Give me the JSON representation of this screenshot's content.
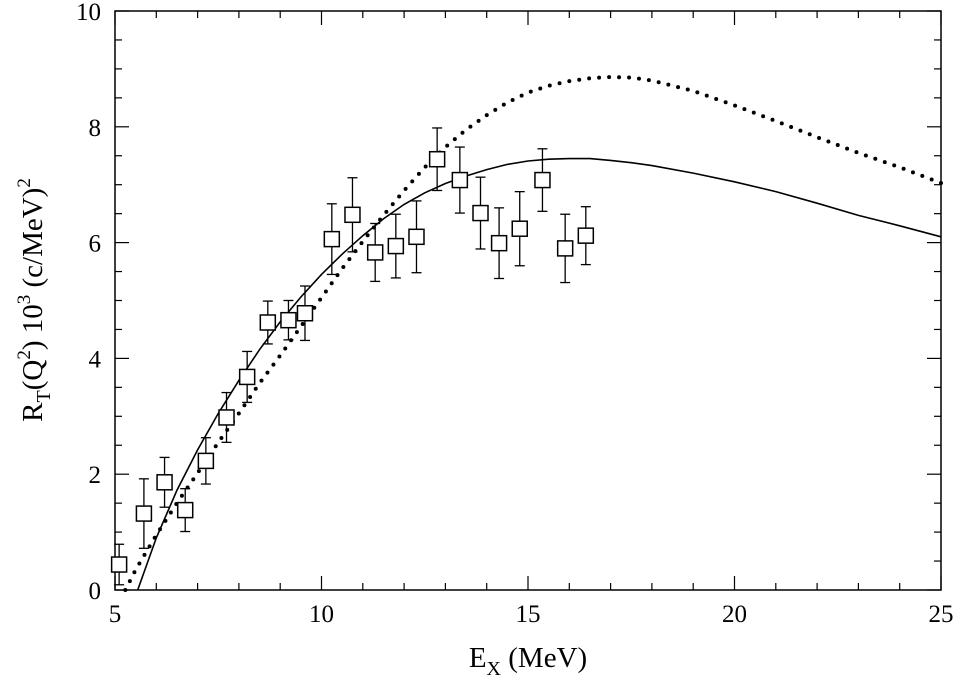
{
  "chart_data": {
    "type": "scatter",
    "xlabel": {
      "main": "E",
      "sub": "X",
      "rest": " (MeV)"
    },
    "ylabel": {
      "p1": "R",
      "sub": "T",
      "p2": "(Q",
      "sup1": "2",
      "p3": ") 10",
      "sup2": "3",
      "p4": " (c/MeV)",
      "sup3": "2"
    },
    "xlim": [
      5,
      25
    ],
    "ylim": [
      0,
      10
    ],
    "x_ticks": [
      5,
      10,
      15,
      20,
      25
    ],
    "y_ticks": [
      0,
      2,
      4,
      6,
      8,
      10
    ],
    "x_tick_labels": [
      "5",
      "10",
      "15",
      "20",
      "25"
    ],
    "y_tick_labels": [
      "0",
      "2",
      "4",
      "6",
      "8",
      "10"
    ],
    "series": [
      {
        "name": "data",
        "style": "open-square-markers-with-error-bars",
        "points": [
          {
            "x": 5.1,
            "y": 0.44,
            "err": 0.35
          },
          {
            "x": 5.7,
            "y": 1.32,
            "err": 0.6
          },
          {
            "x": 6.2,
            "y": 1.86,
            "err": 0.43
          },
          {
            "x": 6.7,
            "y": 1.38,
            "err": 0.37
          },
          {
            "x": 7.2,
            "y": 2.23,
            "err": 0.4
          },
          {
            "x": 7.7,
            "y": 2.98,
            "err": 0.43
          },
          {
            "x": 8.2,
            "y": 3.68,
            "err": 0.44
          },
          {
            "x": 8.7,
            "y": 4.62,
            "err": 0.37
          },
          {
            "x": 9.2,
            "y": 4.66,
            "err": 0.34
          },
          {
            "x": 9.6,
            "y": 4.78,
            "err": 0.47
          },
          {
            "x": 10.25,
            "y": 6.06,
            "err": 0.61
          },
          {
            "x": 10.75,
            "y": 6.48,
            "err": 0.64
          },
          {
            "x": 11.3,
            "y": 5.83,
            "err": 0.5
          },
          {
            "x": 11.8,
            "y": 5.94,
            "err": 0.55
          },
          {
            "x": 12.3,
            "y": 6.1,
            "err": 0.62
          },
          {
            "x": 12.8,
            "y": 7.44,
            "err": 0.54
          },
          {
            "x": 13.35,
            "y": 7.08,
            "err": 0.57
          },
          {
            "x": 13.85,
            "y": 6.51,
            "err": 0.62
          },
          {
            "x": 14.3,
            "y": 5.99,
            "err": 0.61
          },
          {
            "x": 14.8,
            "y": 6.24,
            "err": 0.64
          },
          {
            "x": 15.35,
            "y": 7.08,
            "err": 0.54
          },
          {
            "x": 15.9,
            "y": 5.9,
            "err": 0.59
          },
          {
            "x": 16.4,
            "y": 6.12,
            "err": 0.5
          }
        ]
      },
      {
        "name": "solid-curve",
        "style": "solid",
        "x": [
          5.55,
          6.0,
          6.5,
          7.0,
          7.5,
          8.0,
          8.5,
          9.0,
          9.5,
          10.0,
          10.5,
          11.0,
          11.5,
          12.0,
          12.5,
          13.0,
          13.5,
          14.0,
          14.5,
          15.0,
          15.5,
          16.0,
          16.5,
          17.0,
          17.5,
          18.0,
          19.0,
          20.0,
          21.0,
          22.0,
          23.0,
          24.0,
          25.0
        ],
        "y": [
          0.0,
          0.9,
          1.72,
          2.42,
          3.05,
          3.62,
          4.15,
          4.63,
          5.06,
          5.45,
          5.8,
          6.12,
          6.41,
          6.66,
          6.86,
          7.02,
          7.15,
          7.26,
          7.35,
          7.41,
          7.44,
          7.45,
          7.45,
          7.42,
          7.38,
          7.33,
          7.2,
          7.05,
          6.88,
          6.68,
          6.47,
          6.29,
          6.1
        ]
      },
      {
        "name": "dotted-curve",
        "style": "dotted",
        "x": [
          5.25,
          5.5,
          6.0,
          6.5,
          7.0,
          7.5,
          8.0,
          8.5,
          9.0,
          9.5,
          10.0,
          10.5,
          11.0,
          11.5,
          12.0,
          12.5,
          13.0,
          13.5,
          14.0,
          14.5,
          15.0,
          15.5,
          16.0,
          16.5,
          17.0,
          17.5,
          18.0,
          19.0,
          20.0,
          21.0,
          22.0,
          23.0,
          24.0,
          25.0
        ],
        "y": [
          0.0,
          0.35,
          0.95,
          1.5,
          2.02,
          2.55,
          3.05,
          3.57,
          4.05,
          4.55,
          5.05,
          5.55,
          6.02,
          6.47,
          6.9,
          7.3,
          7.65,
          7.95,
          8.2,
          8.42,
          8.59,
          8.71,
          8.79,
          8.84,
          8.86,
          8.85,
          8.8,
          8.62,
          8.37,
          8.1,
          7.82,
          7.55,
          7.3,
          7.03
        ]
      }
    ]
  }
}
